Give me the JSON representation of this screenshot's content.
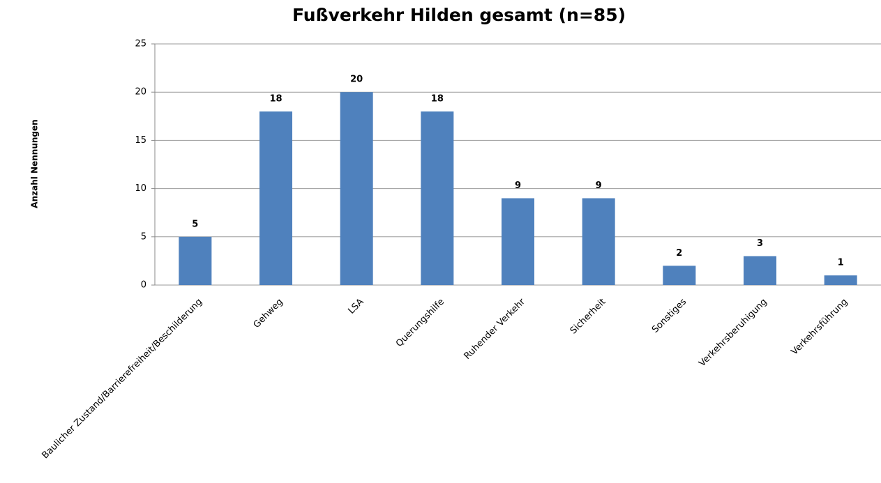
{
  "chart_data": {
    "type": "bar",
    "title": "Fußverkehr Hilden gesamt (n=85)",
    "y_label": "Anzahl Nennungen",
    "categories": [
      "Baulicher Zustand/Barrierefreiheit/Beschilderung",
      "Gehweg",
      "LSA",
      "Querungshilfe",
      "Ruhender Verkehr",
      "Sicherheit",
      "Sonstiges",
      "Verkehrsberuhigung",
      "Verkehrsführung"
    ],
    "values": [
      5,
      18,
      20,
      18,
      9,
      9,
      2,
      3,
      1
    ],
    "color": "#4f81bd",
    "ylim": [
      0,
      25
    ],
    "yticks": [
      0,
      5,
      10,
      15,
      20,
      25
    ],
    "grid": true
  }
}
